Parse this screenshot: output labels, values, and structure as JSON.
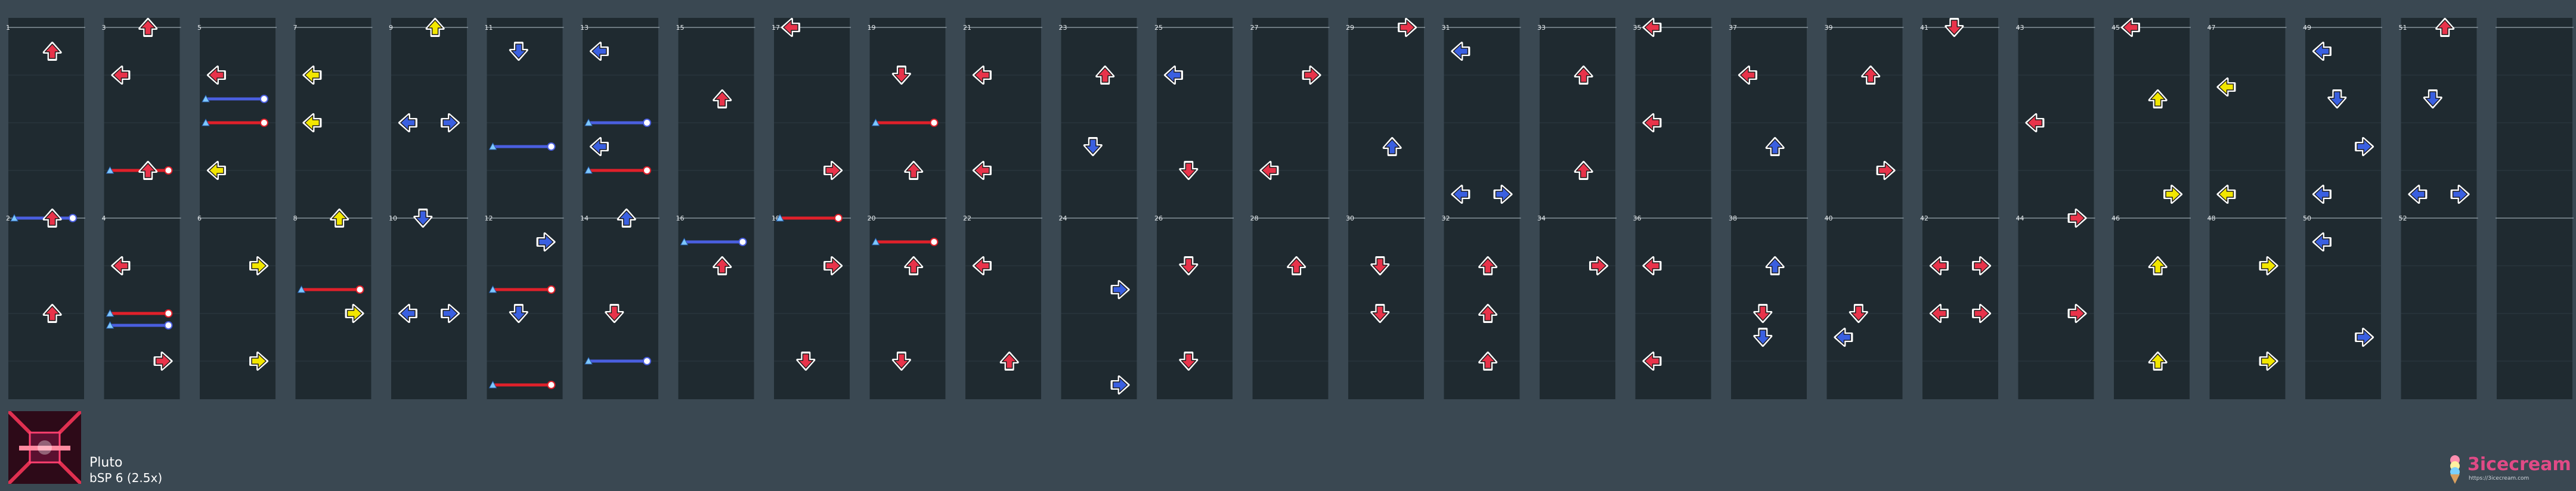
{
  "song": {
    "title": "Pluto",
    "difficulty": "bSP 6 (2.5x)"
  },
  "logo": {
    "text": "3icecream",
    "url": "https://3icecream.com"
  },
  "colors": {
    "background": "#3a4852",
    "lane": "#1f2a30",
    "red_arrow": "#e8334a",
    "blue_arrow": "#3a5fe0",
    "yellow_arrow": "#f2e600",
    "freeze_red": "#e0202a",
    "freeze_blue": "#4a5fe0"
  },
  "chart_data": {
    "type": "table",
    "measure_labels": [
      "1",
      "2",
      "3",
      "4",
      "5",
      "6",
      "7",
      "8",
      "9",
      "10",
      "11",
      "12",
      "13",
      "14",
      "15",
      "16",
      "17",
      "18",
      "19",
      "20",
      "21",
      "22",
      "23",
      "24",
      "25",
      "26",
      "27",
      "28",
      "29",
      "30",
      "31",
      "32",
      "33",
      "34",
      "35",
      "36",
      "37",
      "38",
      "39",
      "40",
      "41",
      "42",
      "43",
      "44",
      "45",
      "46",
      "47",
      "48",
      "49",
      "50",
      "51",
      "52"
    ],
    "notes": [
      {
        "m": 1,
        "beat": 0.5,
        "dir": "U",
        "c": "r"
      },
      {
        "m": 2,
        "beat": 0.0,
        "dir": "U",
        "c": "r"
      },
      {
        "m": 2,
        "beat": 2.0,
        "dir": "U",
        "c": "r"
      },
      {
        "m": 3,
        "beat": 1.0,
        "dir": "L",
        "c": "r"
      },
      {
        "m": 3,
        "beat": 3.0,
        "dir": "U",
        "c": "r"
      },
      {
        "m": 3,
        "beat": 0.0,
        "dir": "U",
        "c": "r"
      },
      {
        "m": 4,
        "beat": 1.0,
        "dir": "L",
        "c": "r"
      },
      {
        "m": 4,
        "beat": 3.0,
        "dir": "R",
        "c": "r"
      },
      {
        "m": 4,
        "beat": 1.0,
        "dir": "L",
        "c": "r"
      },
      {
        "m": 5,
        "beat": 1.0,
        "dir": "L",
        "c": "r"
      },
      {
        "m": 5,
        "beat": 3.0,
        "dir": "L",
        "c": "y"
      },
      {
        "m": 6,
        "beat": 1.0,
        "dir": "R",
        "c": "y"
      },
      {
        "m": 6,
        "beat": 3.0,
        "dir": "R",
        "c": "y"
      },
      {
        "m": 7,
        "beat": 1.0,
        "dir": "L",
        "c": "y"
      },
      {
        "m": 7,
        "beat": 2.0,
        "dir": "L",
        "c": "y"
      },
      {
        "m": 8,
        "beat": 0.0,
        "dir": "U",
        "c": "y"
      },
      {
        "m": 8,
        "beat": 2.0,
        "dir": "R",
        "c": "y"
      },
      {
        "m": 9,
        "beat": 0.0,
        "dir": "U",
        "c": "y"
      },
      {
        "m": 9,
        "beat": 2.0,
        "dir": "L",
        "c": "b"
      },
      {
        "m": 9,
        "beat": 2.0,
        "dir": "R",
        "c": "b"
      },
      {
        "m": 10,
        "beat": 0.0,
        "dir": "D",
        "c": "b"
      },
      {
        "m": 10,
        "beat": 2.0,
        "dir": "L",
        "c": "b"
      },
      {
        "m": 10,
        "beat": 2.0,
        "dir": "R",
        "c": "b"
      },
      {
        "m": 11,
        "beat": 0.5,
        "dir": "D",
        "c": "b"
      },
      {
        "m": 12,
        "beat": 0.5,
        "dir": "R",
        "c": "b"
      },
      {
        "m": 12,
        "beat": 2.0,
        "dir": "D",
        "c": "b"
      },
      {
        "m": 13,
        "beat": 0.5,
        "dir": "L",
        "c": "b"
      },
      {
        "m": 13,
        "beat": 2.5,
        "dir": "L",
        "c": "b"
      },
      {
        "m": 14,
        "beat": 0.0,
        "dir": "U",
        "c": "b"
      },
      {
        "m": 14,
        "beat": 2.0,
        "dir": "D",
        "c": "r"
      },
      {
        "m": 15,
        "beat": 1.5,
        "dir": "U",
        "c": "r"
      },
      {
        "m": 16,
        "beat": 1.0,
        "dir": "U",
        "c": "r"
      },
      {
        "m": 17,
        "beat": 0.0,
        "dir": "L",
        "c": "r"
      },
      {
        "m": 17,
        "beat": 3.0,
        "dir": "R",
        "c": "r"
      },
      {
        "m": 18,
        "beat": 1.0,
        "dir": "R",
        "c": "r"
      },
      {
        "m": 18,
        "beat": 3.0,
        "dir": "D",
        "c": "r"
      },
      {
        "m": 19,
        "beat": 1.0,
        "dir": "D",
        "c": "r"
      },
      {
        "m": 19,
        "beat": 3.0,
        "dir": "U",
        "c": "r"
      },
      {
        "m": 20,
        "beat": 1.0,
        "dir": "U",
        "c": "r"
      },
      {
        "m": 20,
        "beat": 3.0,
        "dir": "D",
        "c": "r"
      },
      {
        "m": 21,
        "beat": 1.0,
        "dir": "L",
        "c": "r"
      },
      {
        "m": 21,
        "beat": 3.0,
        "dir": "L",
        "c": "r"
      },
      {
        "m": 22,
        "beat": 1.0,
        "dir": "L",
        "c": "r"
      },
      {
        "m": 22,
        "beat": 3.0,
        "dir": "U",
        "c": "r"
      },
      {
        "m": 23,
        "beat": 1.0,
        "dir": "U",
        "c": "r"
      },
      {
        "m": 23,
        "beat": 2.5,
        "dir": "D",
        "c": "b"
      },
      {
        "m": 24,
        "beat": 1.5,
        "dir": "R",
        "c": "b"
      },
      {
        "m": 24,
        "beat": 3.5,
        "dir": "R",
        "c": "b"
      },
      {
        "m": 25,
        "beat": 1.0,
        "dir": "L",
        "c": "b"
      },
      {
        "m": 25,
        "beat": 3.0,
        "dir": "D",
        "c": "r"
      },
      {
        "m": 26,
        "beat": 1.0,
        "dir": "D",
        "c": "r"
      },
      {
        "m": 26,
        "beat": 3.0,
        "dir": "D",
        "c": "r"
      },
      {
        "m": 27,
        "beat": 1.0,
        "dir": "R",
        "c": "r"
      },
      {
        "m": 27,
        "beat": 3.0,
        "dir": "L",
        "c": "r"
      },
      {
        "m": 28,
        "beat": 1.0,
        "dir": "U",
        "c": "r"
      },
      {
        "m": 29,
        "beat": 0.0,
        "dir": "R",
        "c": "r"
      },
      {
        "m": 29,
        "beat": 2.5,
        "dir": "U",
        "c": "b"
      },
      {
        "m": 30,
        "beat": 1.0,
        "dir": "D",
        "c": "r"
      },
      {
        "m": 30,
        "beat": 2.0,
        "dir": "D",
        "c": "r"
      },
      {
        "m": 31,
        "beat": 0.5,
        "dir": "L",
        "c": "b"
      },
      {
        "m": 31,
        "beat": 3.5,
        "dir": "L",
        "c": "b"
      },
      {
        "m": 31,
        "beat": 3.5,
        "dir": "R",
        "c": "b"
      },
      {
        "m": 32,
        "beat": 1.0,
        "dir": "U",
        "c": "r"
      },
      {
        "m": 32,
        "beat": 2.0,
        "dir": "U",
        "c": "r"
      },
      {
        "m": 32,
        "beat": 3.0,
        "dir": "U",
        "c": "r"
      },
      {
        "m": 33,
        "beat": 1.0,
        "dir": "U",
        "c": "r"
      },
      {
        "m": 33,
        "beat": 3.0,
        "dir": "U",
        "c": "r"
      },
      {
        "m": 34,
        "beat": 1.0,
        "dir": "R",
        "c": "r"
      },
      {
        "m": 35,
        "beat": 0.0,
        "dir": "L",
        "c": "r"
      },
      {
        "m": 35,
        "beat": 2.0,
        "dir": "L",
        "c": "r"
      },
      {
        "m": 36,
        "beat": 1.0,
        "dir": "L",
        "c": "r"
      },
      {
        "m": 36,
        "beat": 3.0,
        "dir": "L",
        "c": "r"
      },
      {
        "m": 37,
        "beat": 1.0,
        "dir": "L",
        "c": "r"
      },
      {
        "m": 37,
        "beat": 2.5,
        "dir": "U",
        "c": "b"
      },
      {
        "m": 38,
        "beat": 1.0,
        "dir": "U",
        "c": "b"
      },
      {
        "m": 38,
        "beat": 2.5,
        "dir": "D",
        "c": "b"
      },
      {
        "m": 38,
        "beat": 2.0,
        "dir": "D",
        "c": "r"
      },
      {
        "m": 39,
        "beat": 1.0,
        "dir": "U",
        "c": "r"
      },
      {
        "m": 39,
        "beat": 3.0,
        "dir": "R",
        "c": "r"
      },
      {
        "m": 40,
        "beat": 2.0,
        "dir": "D",
        "c": "r"
      },
      {
        "m": 40,
        "beat": 2.5,
        "dir": "L",
        "c": "b"
      },
      {
        "m": 41,
        "beat": 0.0,
        "dir": "D",
        "c": "r"
      },
      {
        "m": 42,
        "beat": 1.0,
        "dir": "L",
        "c": "r"
      },
      {
        "m": 42,
        "beat": 1.0,
        "dir": "R",
        "c": "r"
      },
      {
        "m": 42,
        "beat": 2.0,
        "dir": "L",
        "c": "r"
      },
      {
        "m": 42,
        "beat": 2.0,
        "dir": "R",
        "c": "r"
      },
      {
        "m": 43,
        "beat": 2.0,
        "dir": "L",
        "c": "r"
      },
      {
        "m": 44,
        "beat": 0.0,
        "dir": "R",
        "c": "r"
      },
      {
        "m": 44,
        "beat": 2.0,
        "dir": "R",
        "c": "r"
      },
      {
        "m": 45,
        "beat": 0.0,
        "dir": "L",
        "c": "r"
      },
      {
        "m": 45,
        "beat": 1.5,
        "dir": "U",
        "c": "y"
      },
      {
        "m": 46,
        "beat": 1.0,
        "dir": "U",
        "c": "y"
      },
      {
        "m": 46,
        "beat": 3.0,
        "dir": "U",
        "c": "y"
      },
      {
        "m": 45,
        "beat": 3.5,
        "dir": "R",
        "c": "y"
      },
      {
        "m": 47,
        "beat": 1.25,
        "dir": "L",
        "c": "y"
      },
      {
        "m": 47,
        "beat": 3.5,
        "dir": "L",
        "c": "y"
      },
      {
        "m": 48,
        "beat": 1.0,
        "dir": "R",
        "c": "y"
      },
      {
        "m": 48,
        "beat": 3.0,
        "dir": "R",
        "c": "y"
      },
      {
        "m": 49,
        "beat": 0.5,
        "dir": "L",
        "c": "b"
      },
      {
        "m": 49,
        "beat": 1.5,
        "dir": "D",
        "c": "b"
      },
      {
        "m": 49,
        "beat": 2.5,
        "dir": "R",
        "c": "b"
      },
      {
        "m": 49,
        "beat": 3.5,
        "dir": "L",
        "c": "b"
      },
      {
        "m": 50,
        "beat": 0.5,
        "dir": "L",
        "c": "b"
      },
      {
        "m": 50,
        "beat": 2.5,
        "dir": "R",
        "c": "b"
      },
      {
        "m": 51,
        "beat": 0.0,
        "dir": "U",
        "c": "r"
      },
      {
        "m": 51,
        "beat": 1.5,
        "dir": "D",
        "c": "b"
      },
      {
        "m": 51,
        "beat": 3.5,
        "dir": "L",
        "c": "b"
      },
      {
        "m": 51,
        "beat": 3.5,
        "dir": "R",
        "c": "b"
      }
    ],
    "freezes": [
      {
        "m": 2,
        "beat": 0.0,
        "len": 1.0,
        "c": "b"
      },
      {
        "m": 3,
        "beat": 3.0,
        "len": 1.0,
        "c": "r"
      },
      {
        "m": 4,
        "beat": 2.0,
        "len": 1.0,
        "c": "r"
      },
      {
        "m": 4,
        "beat": 2.25,
        "len": 1.0,
        "c": "b"
      },
      {
        "m": 5,
        "beat": 2.0,
        "len": 1.0,
        "c": "r"
      },
      {
        "m": 5,
        "beat": 1.5,
        "len": 1.0,
        "c": "b"
      },
      {
        "m": 8,
        "beat": 1.5,
        "len": 1.0,
        "c": "r"
      },
      {
        "m": 11,
        "beat": 2.5,
        "len": 1.0,
        "c": "b"
      },
      {
        "m": 12,
        "beat": 1.5,
        "len": 1.0,
        "c": "r"
      },
      {
        "m": 12,
        "beat": 3.5,
        "len": 1.0,
        "c": "r"
      },
      {
        "m": 13,
        "beat": 2.0,
        "len": 1.0,
        "c": "b"
      },
      {
        "m": 13,
        "beat": 3.0,
        "len": 1.0,
        "c": "r"
      },
      {
        "m": 14,
        "beat": 3.0,
        "len": 1.0,
        "c": "b"
      },
      {
        "m": 16,
        "beat": 0.5,
        "len": 1.0,
        "c": "b"
      },
      {
        "m": 18,
        "beat": 0.0,
        "len": 1.0,
        "c": "r"
      },
      {
        "m": 19,
        "beat": 2.0,
        "len": 1.0,
        "c": "r"
      },
      {
        "m": 20,
        "beat": 0.5,
        "len": 1.0,
        "c": "r"
      }
    ]
  }
}
